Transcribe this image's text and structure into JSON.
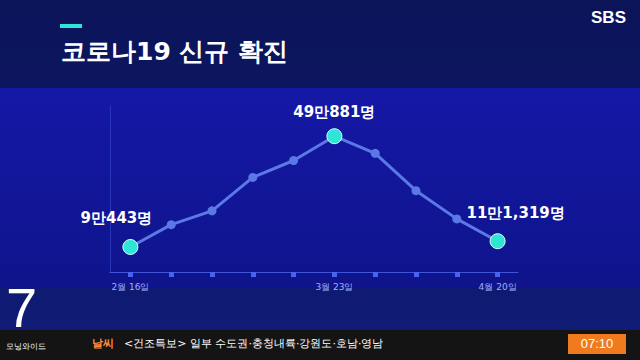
{
  "header": {
    "logo": "SBS"
  },
  "chart_data": {
    "type": "line",
    "title": "코로나19 신규 확진",
    "categories": [
      "2월 16일",
      null,
      null,
      null,
      null,
      "3월 23일",
      null,
      null,
      null,
      "4월 20일"
    ],
    "values": [
      90443,
      171000,
      221000,
      342000,
      403000,
      490881,
      429000,
      294000,
      192000,
      111319
    ],
    "value_labels": [
      "9만443명",
      null,
      null,
      null,
      null,
      "49만881명",
      null,
      null,
      null,
      "11만1,319명"
    ],
    "color": "#5b78e6",
    "marker": "circle",
    "line_style": "solid",
    "ylim": [
      0,
      600000
    ],
    "grid": false,
    "data_labels": true,
    "tick_labels": "x"
  },
  "footer": {
    "channel_number": "7",
    "program": "모닝와이드",
    "ticker_tag": "날씨",
    "ticker_text": "<건조특보> 일부 수도권·충청내륙·강원도·호남·영남",
    "clock": "07:10"
  }
}
